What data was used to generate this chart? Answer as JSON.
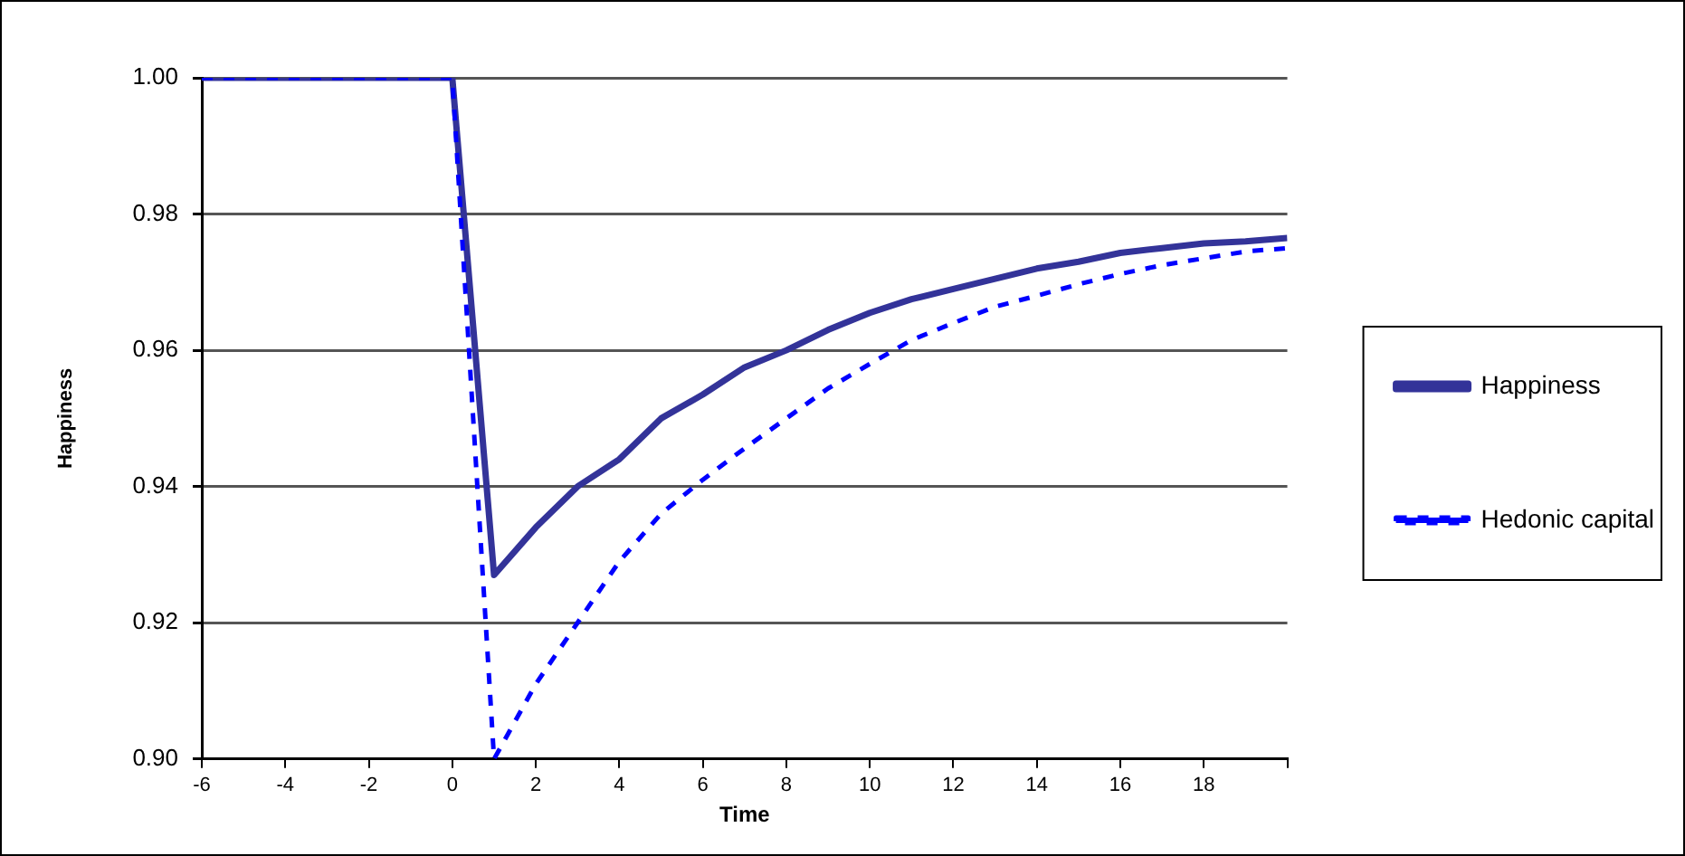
{
  "chart_data": {
    "type": "line",
    "xlabel": "Time",
    "ylabel": "Happiness",
    "x": [
      -6,
      -5,
      -4,
      -3,
      -2,
      -1,
      0,
      1,
      2,
      3,
      4,
      5,
      6,
      7,
      8,
      9,
      10,
      11,
      12,
      13,
      14,
      15,
      16,
      17,
      18,
      19,
      20
    ],
    "series": [
      {
        "name": "Happiness",
        "color": "#333399",
        "line_style": "solid",
        "values": [
          1.0,
          1.0,
          1.0,
          1.0,
          1.0,
          1.0,
          1.0,
          0.927,
          0.934,
          0.94,
          0.944,
          0.95,
          0.9535,
          0.9575,
          0.96,
          0.963,
          0.9655,
          0.9675,
          0.969,
          0.9705,
          0.972,
          0.973,
          0.9743,
          0.975,
          0.9757,
          0.976,
          0.9765
        ]
      },
      {
        "name": "Hedonic capital",
        "color": "#0000ff",
        "line_style": "dashed",
        "values": [
          1.0,
          1.0,
          1.0,
          1.0,
          1.0,
          1.0,
          1.0,
          0.9,
          0.911,
          0.92,
          0.929,
          0.936,
          0.941,
          0.9456,
          0.95,
          0.9544,
          0.958,
          0.9615,
          0.964,
          0.9664,
          0.968,
          0.9697,
          0.9712,
          0.9725,
          0.9735,
          0.9745,
          0.975
        ]
      }
    ],
    "xlim": [
      -6,
      20
    ],
    "xticks": [
      -6,
      -4,
      -2,
      0,
      2,
      4,
      6,
      8,
      10,
      12,
      14,
      16,
      18,
      {
        "value": 20,
        "label": null
      }
    ],
    "ylim": [
      0.9,
      1.0
    ],
    "yticks": [
      {
        "value": 0.9,
        "label": "0.90"
      },
      {
        "value": 0.92,
        "label": "0.92"
      },
      {
        "value": 0.94,
        "label": "0.94"
      },
      {
        "value": 0.96,
        "label": "0.96"
      },
      {
        "value": 0.98,
        "label": "0.98"
      },
      {
        "value": 1.0,
        "label": "1.00"
      }
    ],
    "grid": "y",
    "legend": "right",
    "marker": "none"
  }
}
